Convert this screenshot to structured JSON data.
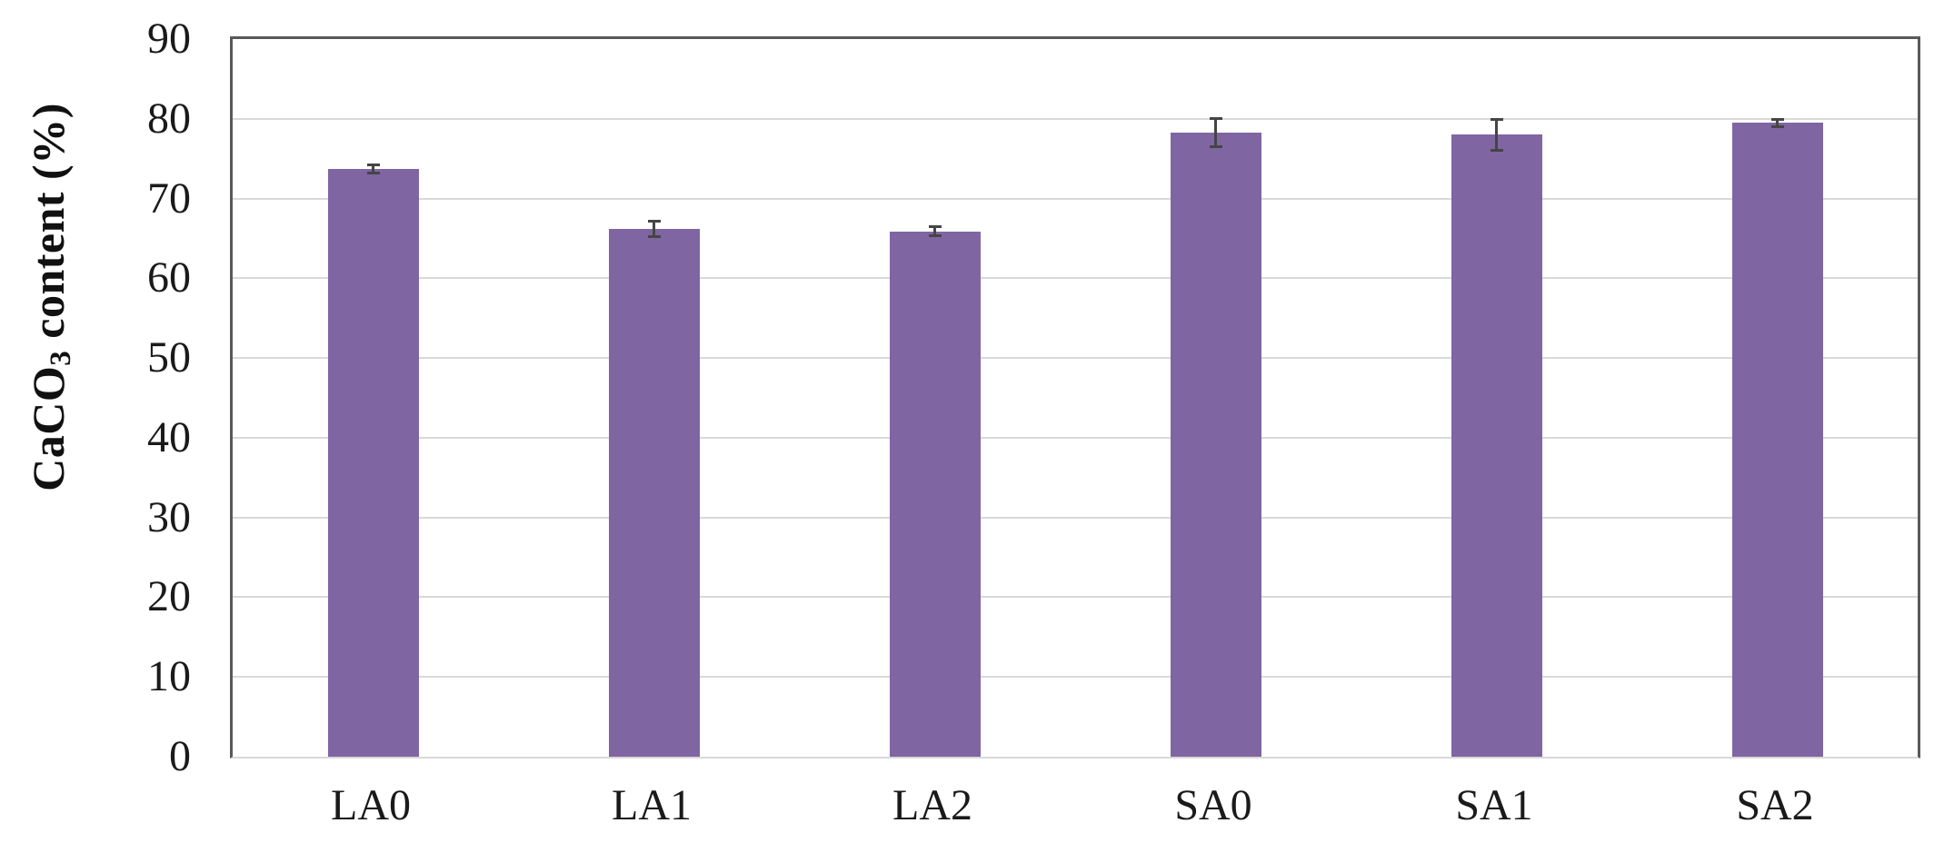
{
  "chart_data": {
    "type": "bar",
    "title": "",
    "xlabel": "",
    "ylabel": "CaCO₃ content (%)",
    "ylabel_parts": {
      "prefix": "CaCO",
      "sub": "3",
      "suffix": " content (%)"
    },
    "categories": [
      "LA0",
      "LA1",
      "LA2",
      "SA0",
      "SA1",
      "SA2"
    ],
    "values": [
      73.7,
      66.2,
      65.9,
      78.3,
      78.0,
      79.5
    ],
    "error_bars_plus_minus": [
      0.3,
      0.8,
      0.4,
      1.6,
      1.8,
      0.3
    ],
    "ylim": [
      0,
      90
    ],
    "yticks": [
      0,
      10,
      20,
      30,
      40,
      50,
      60,
      70,
      80,
      90
    ],
    "grid": true,
    "legend": "none",
    "colors": {
      "bar": "#8065A3",
      "error_bar": "#454545",
      "axis_border": "#595959",
      "gridline": "#d9d9d9",
      "text": "#1a1a1a",
      "background": "#ffffff"
    }
  }
}
